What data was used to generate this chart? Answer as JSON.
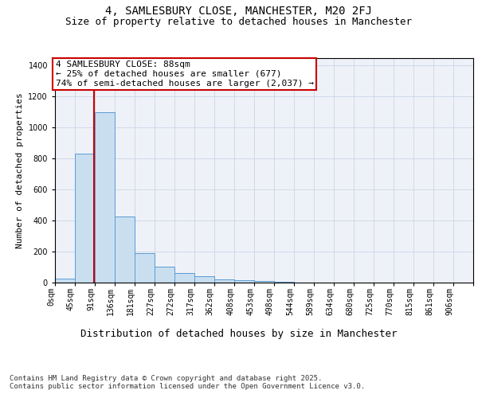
{
  "title1": "4, SAMLESBURY CLOSE, MANCHESTER, M20 2FJ",
  "title2": "Size of property relative to detached houses in Manchester",
  "xlabel": "Distribution of detached houses by size in Manchester",
  "ylabel": "Number of detached properties",
  "bin_labels": [
    "0sqm",
    "45sqm",
    "91sqm",
    "136sqm",
    "181sqm",
    "227sqm",
    "272sqm",
    "317sqm",
    "362sqm",
    "408sqm",
    "453sqm",
    "498sqm",
    "544sqm",
    "589sqm",
    "634sqm",
    "680sqm",
    "725sqm",
    "770sqm",
    "815sqm",
    "861sqm",
    "906sqm"
  ],
  "bin_edges": [
    0,
    45,
    91,
    136,
    181,
    227,
    272,
    317,
    362,
    408,
    453,
    498,
    544,
    589,
    634,
    680,
    725,
    770,
    815,
    861,
    906
  ],
  "bar_heights": [
    25,
    830,
    1100,
    425,
    190,
    105,
    60,
    40,
    20,
    15,
    8,
    4,
    2,
    1,
    0,
    0,
    0,
    0,
    0,
    0
  ],
  "bar_color": "#c9dff0",
  "bar_edge_color": "#5b9bd5",
  "property_size": 88,
  "vline_color": "#cc0000",
  "annotation_line1": "4 SAMLESBURY CLOSE: 88sqm",
  "annotation_line2": "← 25% of detached houses are smaller (677)",
  "annotation_line3": "74% of semi-detached houses are larger (2,037) →",
  "annotation_box_color": "#cc0000",
  "ylim": [
    0,
    1450
  ],
  "yticks": [
    0,
    200,
    400,
    600,
    800,
    1000,
    1200,
    1400
  ],
  "grid_color": "#d0d8e8",
  "bg_color": "#eef2f8",
  "footer_text": "Contains HM Land Registry data © Crown copyright and database right 2025.\nContains public sector information licensed under the Open Government Licence v3.0.",
  "title1_fontsize": 10,
  "title2_fontsize": 9,
  "xlabel_fontsize": 9,
  "ylabel_fontsize": 8,
  "tick_fontsize": 7,
  "annotation_fontsize": 8,
  "footer_fontsize": 6.5
}
